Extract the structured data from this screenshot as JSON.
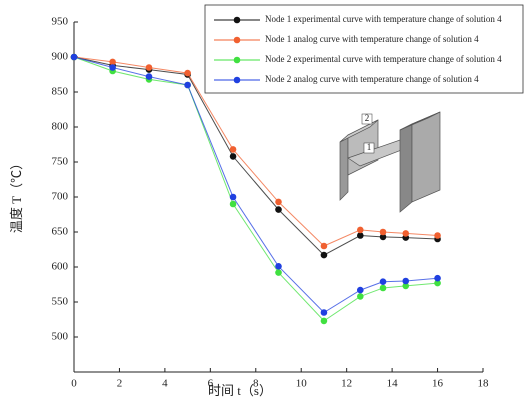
{
  "chart_data": {
    "type": "line",
    "xlabel": "时间 t（s）",
    "ylabel": "温度 T（℃）",
    "x": [
      0,
      1.7,
      3.3,
      5,
      7,
      9,
      11,
      12.6,
      13.6,
      14.6,
      16
    ],
    "series": [
      {
        "name": "Node 1 experimental curve with temperature change of solution 4",
        "color": "#111111",
        "values": [
          900,
          888,
          882,
          875,
          758,
          682,
          617,
          645,
          643,
          642,
          640
        ]
      },
      {
        "name": "Node 1 analog curve with temperature change of solution 4",
        "color": "#f06030",
        "values": [
          900,
          893,
          885,
          877,
          768,
          693,
          630,
          653,
          650,
          648,
          645
        ]
      },
      {
        "name": "Node 2 experimental curve with temperature change of solution 4",
        "color": "#40e040",
        "values": [
          900,
          880,
          868,
          860,
          690,
          592,
          523,
          558,
          570,
          573,
          577
        ]
      },
      {
        "name": "Node 2 analog curve with temperature change of solution 4",
        "color": "#2040e0",
        "values": [
          900,
          885,
          872,
          860,
          700,
          601,
          535,
          567,
          579,
          580,
          584
        ]
      }
    ],
    "xlim": [
      0,
      18
    ],
    "xticks": [
      0,
      2,
      4,
      6,
      8,
      10,
      12,
      14,
      16,
      18
    ],
    "ylim": [
      450,
      950
    ],
    "yticks": [
      500,
      550,
      600,
      650,
      700,
      750,
      800,
      850,
      900,
      950
    ],
    "legend": "upper right",
    "annotations": [
      "2",
      "1"
    ]
  }
}
